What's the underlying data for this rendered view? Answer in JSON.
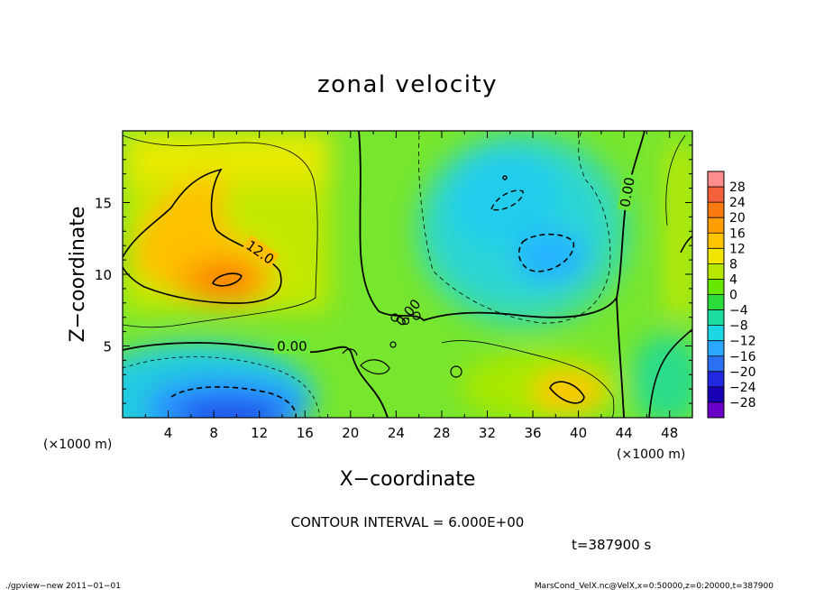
{
  "chart_data": {
    "type": "heatmap",
    "title": "zonal velocity",
    "xlabel": "X−coordinate",
    "ylabel": "Z−coordinate",
    "x_unit_left": "(×1000 m)",
    "x_unit_right": "(×1000 m)",
    "xlim": [
      0,
      50
    ],
    "ylim": [
      0,
      20
    ],
    "x_ticks": [
      "4",
      "8",
      "12",
      "16",
      "20",
      "24",
      "28",
      "32",
      "36",
      "40",
      "44",
      "48"
    ],
    "y_ticks": [
      "5",
      "10",
      "15"
    ],
    "colorbar": {
      "labels": [
        "28",
        "24",
        "20",
        "16",
        "12",
        "8",
        "4",
        "0",
        "−4",
        "−8",
        "−12",
        "−16",
        "−20",
        "−24",
        "−28"
      ],
      "colors": [
        "#ff8c8c",
        "#f2603c",
        "#fa7a10",
        "#ff9e00",
        "#ffc400",
        "#f0e600",
        "#b8e800",
        "#66e800",
        "#2bdc3a",
        "#1cdca0",
        "#1cd6e6",
        "#2aa8ff",
        "#2a70f0",
        "#2028e0",
        "#1800b4",
        "#6a00c8"
      ]
    },
    "contour_labels": [
      "12.0",
      "0.00",
      "0.00",
      "0.00"
    ],
    "contour_interval_text": "CONTOUR INTERVAL = 6.000E+00",
    "time_text": "t=387900 s",
    "features": [
      {
        "kind": "max",
        "x": 9.5,
        "z": 9.8,
        "value": 18
      },
      {
        "kind": "max",
        "x": 38,
        "z": 2.0,
        "value": 12
      },
      {
        "kind": "min",
        "x": 36,
        "z": 12,
        "value": -14
      },
      {
        "kind": "min",
        "x": 34,
        "z": 16,
        "value": -12
      },
      {
        "kind": "min",
        "x": 9,
        "z": 1.0,
        "value": -20
      }
    ]
  },
  "footer": {
    "left": "./gpview−new   2011−01−01",
    "right": "MarsCond_VelX.nc@VelX,x=0:50000,z=0:20000,t=387900"
  }
}
